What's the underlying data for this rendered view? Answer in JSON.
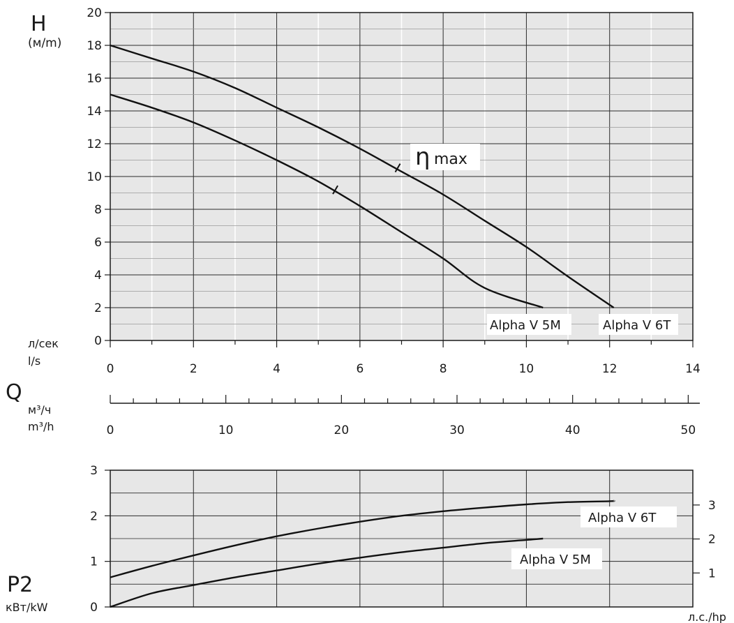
{
  "chart_data": [
    {
      "type": "line",
      "ylabel_symbol": "H",
      "ylabel_unit": "(м/m)",
      "xlabel_ru": "л/сек",
      "xlabel_en": "l/s",
      "xlim": [
        0,
        14
      ],
      "ylim": [
        0,
        20
      ],
      "xticks": [
        0,
        2,
        4,
        6,
        8,
        10,
        12,
        14
      ],
      "yticks": [
        0,
        2,
        4,
        6,
        8,
        10,
        12,
        14,
        16,
        18,
        20
      ],
      "grid": true,
      "annotation": {
        "symbol": "η",
        "text": "max"
      },
      "series": [
        {
          "name": "Alpha V 5M",
          "points": [
            [
              0,
              15
            ],
            [
              1,
              14.2
            ],
            [
              2,
              13.3
            ],
            [
              3,
              12.2
            ],
            [
              4,
              11.0
            ],
            [
              5,
              9.7
            ],
            [
              6,
              8.2
            ],
            [
              7,
              6.6
            ],
            [
              8,
              5.0
            ],
            [
              9,
              3.2
            ],
            [
              10.4,
              2.0
            ]
          ],
          "eta_max_q": 5.4
        },
        {
          "name": "Alpha V 6T",
          "points": [
            [
              0,
              18
            ],
            [
              1,
              17.2
            ],
            [
              2,
              16.4
            ],
            [
              3,
              15.4
            ],
            [
              4,
              14.2
            ],
            [
              5,
              13.0
            ],
            [
              6,
              11.7
            ],
            [
              7,
              10.3
            ],
            [
              8,
              8.9
            ],
            [
              9,
              7.3
            ],
            [
              10,
              5.7
            ],
            [
              11,
              3.9
            ],
            [
              12.1,
              2.0
            ]
          ],
          "eta_max_q": 6.9
        }
      ]
    },
    {
      "type": "axis",
      "label_symbol": "Q",
      "unit_ru": "м³/ч",
      "unit_en": "m³/h",
      "xlim": [
        0,
        50.4
      ],
      "ticks": [
        0,
        10,
        20,
        30,
        40,
        50
      ]
    },
    {
      "type": "line",
      "ylabel_symbol": "P2",
      "ylabel_unit": "кВт/kW",
      "secondary_unit": "л.с./hp",
      "xlim": [
        0,
        14
      ],
      "ylim": [
        0,
        3
      ],
      "yticks": [
        0,
        1,
        2,
        3
      ],
      "yticks_secondary": [
        1,
        2,
        3
      ],
      "grid": true,
      "series": [
        {
          "name": "Alpha V 6T",
          "points": [
            [
              0,
              0.65
            ],
            [
              1,
              0.9
            ],
            [
              2,
              1.13
            ],
            [
              3,
              1.35
            ],
            [
              4,
              1.55
            ],
            [
              5,
              1.72
            ],
            [
              6,
              1.87
            ],
            [
              7,
              2.0
            ],
            [
              8,
              2.1
            ],
            [
              9,
              2.18
            ],
            [
              10,
              2.25
            ],
            [
              11,
              2.3
            ],
            [
              12,
              2.32
            ],
            [
              12.1,
              2.33
            ]
          ]
        },
        {
          "name": "Alpha V 5M",
          "points": [
            [
              0,
              0.0
            ],
            [
              1,
              0.3
            ],
            [
              2,
              0.48
            ],
            [
              3,
              0.65
            ],
            [
              4,
              0.8
            ],
            [
              5,
              0.95
            ],
            [
              6,
              1.08
            ],
            [
              7,
              1.2
            ],
            [
              8,
              1.3
            ],
            [
              9,
              1.4
            ],
            [
              10,
              1.47
            ],
            [
              10.4,
              1.5
            ]
          ]
        }
      ]
    }
  ]
}
